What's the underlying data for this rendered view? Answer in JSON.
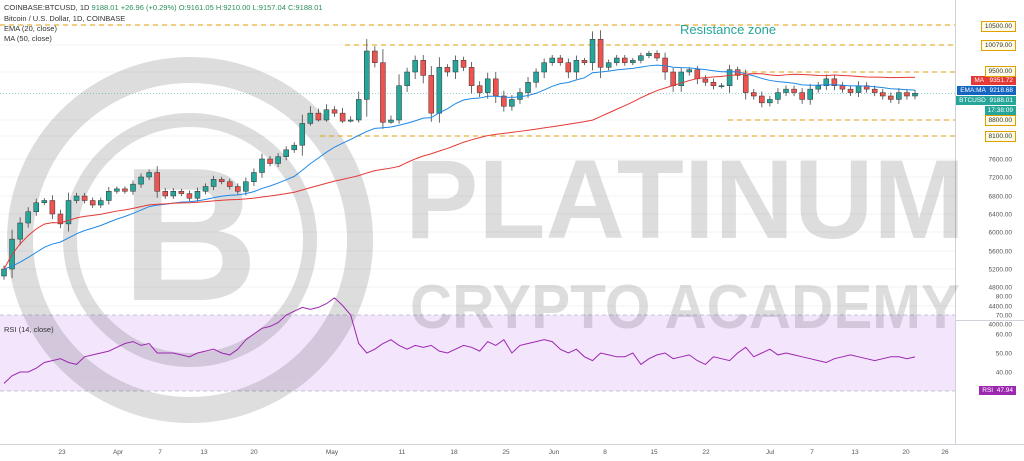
{
  "header": {
    "symbol": "Bitcoin / U.S. Dollar, 1D, COINBASE",
    "ticker_line_prefix": "COINBASE:BTCUSD, 1D",
    "last": "9188.01",
    "change": "+26.96 (+0.29%)",
    "ohlc": "O:9161.05  H:9210.00  L:9157.04  C:9188.01",
    "ema_label": "EMA (20, close)",
    "ma_label": "MA (50, close)",
    "rsi_label": "RSI (14, close)"
  },
  "annotation": "Resistance zone",
  "watermark": {
    "line1": "PLATINUM",
    "line2": "CRYPTO ACADEMY"
  },
  "tags": {
    "ma": "MA",
    "ma_value": "9351.72",
    "ema": "EMA:MA",
    "ema_value": "9218.68",
    "btc": "BTCUSD",
    "btc_value": "9188.01",
    "time": "17:38:09",
    "rsi": "RSI",
    "rsi_value": "47.94"
  },
  "levels": {
    "l10500": "10500.00",
    "l10079": "10079.00",
    "l9500": "9500.00",
    "l8800": "8800.00",
    "l8100": "8100.00"
  },
  "colors": {
    "up": "#26a69a",
    "down": "#ef5350",
    "ema": "#1e88e5",
    "ma": "#e53935",
    "rsi": "#9c27b0",
    "level": "#e0a100"
  },
  "chart_data": {
    "type": "candlestick",
    "price_ticks": [
      "10500.00",
      "10079.00",
      "9500.00",
      "8800.00",
      "8100.00",
      "7600.00",
      "7200.00",
      "6800.00",
      "6400.00",
      "6000.00",
      "5600.00",
      "5200.00",
      "4800.00",
      "4400.00",
      "4000.00"
    ],
    "rsi_ticks": [
      "80.00",
      "70.00",
      "60.00",
      "50.00",
      "40.00",
      "30.00"
    ],
    "x_labels": [
      "23",
      "Apr",
      "7",
      "13",
      "20",
      "May",
      "11",
      "18",
      "25",
      "Jun",
      "8",
      "15",
      "22",
      "Jul",
      "7",
      "13",
      "20",
      "26"
    ],
    "rsi_band": [
      30,
      70
    ],
    "resistance_zone": [
      9500,
      10079
    ],
    "support_levels": [
      8800,
      8100
    ],
    "closes": [
      5200,
      5850,
      6200,
      6450,
      6650,
      6700,
      6400,
      6180,
      6700,
      6800,
      6700,
      6600,
      6700,
      6900,
      6950,
      6900,
      7050,
      7200,
      7300,
      6900,
      6800,
      6900,
      6850,
      6750,
      6900,
      7000,
      7150,
      7100,
      7000,
      6900,
      7100,
      7300,
      7600,
      7500,
      7650,
      7800,
      7900,
      8650,
      8900,
      8800,
      8950,
      8900,
      8750,
      8800,
      9100,
      9950,
      9700,
      8700,
      8800,
      9300,
      9500,
      9750,
      9450,
      8900,
      9600,
      9500,
      9750,
      9600,
      9300,
      9200,
      9400,
      9150,
      9000,
      9100,
      9200,
      9350,
      9500,
      9700,
      9800,
      9700,
      9500,
      9750,
      9700,
      10200,
      9600,
      9700,
      9800,
      9700,
      9750,
      9850,
      9900,
      9800,
      9500,
      9300,
      9500,
      9550,
      9400,
      9350,
      9300,
      9300,
      9550,
      9450,
      9200,
      9150,
      9050,
      9100,
      9200,
      9250,
      9200,
      9100,
      9250,
      9300,
      9400,
      9300,
      9250,
      9200,
      9300,
      9250,
      9200,
      9150,
      9100,
      9200,
      9150,
      9190
    ],
    "rsi": [
      34,
      38,
      40,
      40,
      42,
      45,
      46,
      47,
      45,
      44,
      48,
      49,
      50,
      51,
      53,
      55,
      56,
      54,
      55,
      50,
      50,
      50,
      49,
      48,
      50,
      51,
      52,
      50,
      49,
      52,
      57,
      60,
      63,
      64,
      66,
      70,
      72,
      74,
      73,
      74,
      76,
      79,
      75,
      70,
      55,
      50,
      52,
      55,
      57,
      54,
      52,
      54,
      53,
      54,
      51,
      50,
      52,
      54,
      53,
      51,
      56,
      54,
      57,
      50,
      54,
      55,
      56,
      57,
      56,
      52,
      50,
      52,
      48,
      46,
      50,
      49,
      48,
      48,
      50,
      44,
      47,
      49,
      50,
      47,
      48,
      49,
      46,
      44,
      48,
      47,
      46,
      50,
      53,
      48,
      50,
      52,
      49,
      50,
      49,
      48,
      47,
      46,
      45,
      47,
      48,
      49,
      48,
      47,
      46,
      47,
      48,
      48,
      47,
      47.94
    ]
  }
}
